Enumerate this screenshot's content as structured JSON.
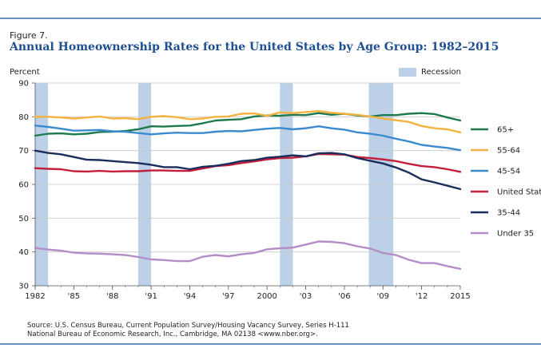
{
  "figure_label": "Figure 7.",
  "chart_data": {
    "type": "line",
    "title": "Annual Homeownership Rates for the United States by Age Group: 1982–2015",
    "ylabel": "Percent",
    "xlabel": "",
    "x": [
      1982,
      1983,
      1984,
      1985,
      1986,
      1987,
      1988,
      1989,
      1990,
      1991,
      1992,
      1993,
      1994,
      1995,
      1996,
      1997,
      1998,
      1999,
      2000,
      2001,
      2002,
      2003,
      2004,
      2005,
      2006,
      2007,
      2008,
      2009,
      2010,
      2011,
      2012,
      2013,
      2014,
      2015
    ],
    "xlim": [
      1982,
      2015
    ],
    "ylim": [
      30,
      90
    ],
    "x_ticks": [
      1982,
      1985,
      1988,
      1991,
      1994,
      1997,
      2000,
      2003,
      2006,
      2009,
      2012,
      2015
    ],
    "x_tick_labels": [
      "1982",
      "'85",
      "'88",
      "'91",
      "'94",
      "'97",
      "2000",
      "'03",
      "'06",
      "'09",
      "'12",
      "2015"
    ],
    "y_ticks": [
      30,
      40,
      50,
      60,
      70,
      80,
      90
    ],
    "y_tick_labels": [
      "30",
      "40",
      "50",
      "60",
      "70",
      "80",
      "90"
    ],
    "grid": "horizontal",
    "recession_label": "Recession",
    "recession_color": "#bcd0e8",
    "recessions": [
      [
        1982,
        1983
      ],
      [
        1990,
        1991
      ],
      [
        2001,
        2002
      ],
      [
        2007.9,
        2009.8
      ]
    ],
    "legend_position": "right",
    "series": [
      {
        "name": "65+",
        "color": "#1e7a4e",
        "values": [
          74.4,
          75.0,
          75.1,
          74.8,
          75.0,
          75.5,
          75.6,
          75.8,
          76.3,
          77.2,
          77.1,
          77.3,
          77.4,
          78.1,
          78.9,
          79.1,
          79.3,
          80.1,
          80.4,
          80.3,
          80.6,
          80.5,
          81.1,
          80.6,
          80.9,
          80.4,
          80.1,
          80.5,
          80.5,
          80.9,
          81.1,
          80.8,
          79.8,
          78.9
        ]
      },
      {
        "name": "55-64",
        "color": "#f2b340",
        "values": [
          80.0,
          80.0,
          79.8,
          79.5,
          79.8,
          80.1,
          79.5,
          79.6,
          79.3,
          80.0,
          80.2,
          79.9,
          79.3,
          79.5,
          80.0,
          80.1,
          80.9,
          81.0,
          80.3,
          81.3,
          81.1,
          81.4,
          81.7,
          81.2,
          80.9,
          80.6,
          80.1,
          79.5,
          79.0,
          78.5,
          77.3,
          76.6,
          76.3,
          75.4
        ]
      },
      {
        "name": "45-54",
        "color": "#3a8ad0",
        "values": [
          77.4,
          77.0,
          76.5,
          75.9,
          76.0,
          76.1,
          75.7,
          75.6,
          75.2,
          74.8,
          75.1,
          75.3,
          75.2,
          75.2,
          75.6,
          75.8,
          75.7,
          76.1,
          76.5,
          76.7,
          76.3,
          76.6,
          77.2,
          76.6,
          76.2,
          75.4,
          75.0,
          74.4,
          73.5,
          72.7,
          71.7,
          71.2,
          70.8,
          70.1
        ]
      },
      {
        "name": "United States",
        "color": "#c41e3a",
        "values": [
          64.8,
          64.6,
          64.5,
          63.9,
          63.8,
          64.0,
          63.8,
          63.9,
          63.9,
          64.1,
          64.1,
          64.0,
          64.0,
          64.7,
          65.4,
          65.7,
          66.3,
          66.8,
          67.4,
          67.8,
          67.9,
          68.3,
          69.0,
          68.9,
          68.8,
          68.1,
          67.8,
          67.4,
          66.9,
          66.1,
          65.4,
          65.1,
          64.5,
          63.7
        ]
      },
      {
        "name": "35-44",
        "color": "#1a2e5c",
        "values": [
          70.0,
          69.3,
          68.9,
          68.1,
          67.3,
          67.2,
          66.9,
          66.6,
          66.3,
          65.8,
          65.1,
          65.1,
          64.5,
          65.2,
          65.5,
          66.1,
          66.9,
          67.2,
          67.9,
          68.2,
          68.6,
          68.3,
          69.2,
          69.3,
          68.9,
          67.8,
          67.0,
          66.2,
          65.0,
          63.5,
          61.5,
          60.6,
          59.6,
          58.6
        ]
      },
      {
        "name": "Under 35",
        "color": "#b48cc8",
        "values": [
          41.2,
          40.7,
          40.4,
          39.8,
          39.6,
          39.5,
          39.3,
          39.1,
          38.5,
          37.8,
          37.6,
          37.3,
          37.3,
          38.6,
          39.1,
          38.7,
          39.3,
          39.7,
          40.8,
          41.1,
          41.3,
          42.2,
          43.1,
          43.0,
          42.6,
          41.7,
          41.0,
          39.7,
          39.1,
          37.7,
          36.7,
          36.7,
          35.8,
          35.0
        ]
      }
    ]
  },
  "source": {
    "line1": "Source: U.S. Census Bureau, Current Population Survey/Housing Vacancy Survey, Series H-111",
    "line2": "National Bureau of Economic Research, Inc., Cambridge, MA 02138 <www.nber.org>."
  }
}
